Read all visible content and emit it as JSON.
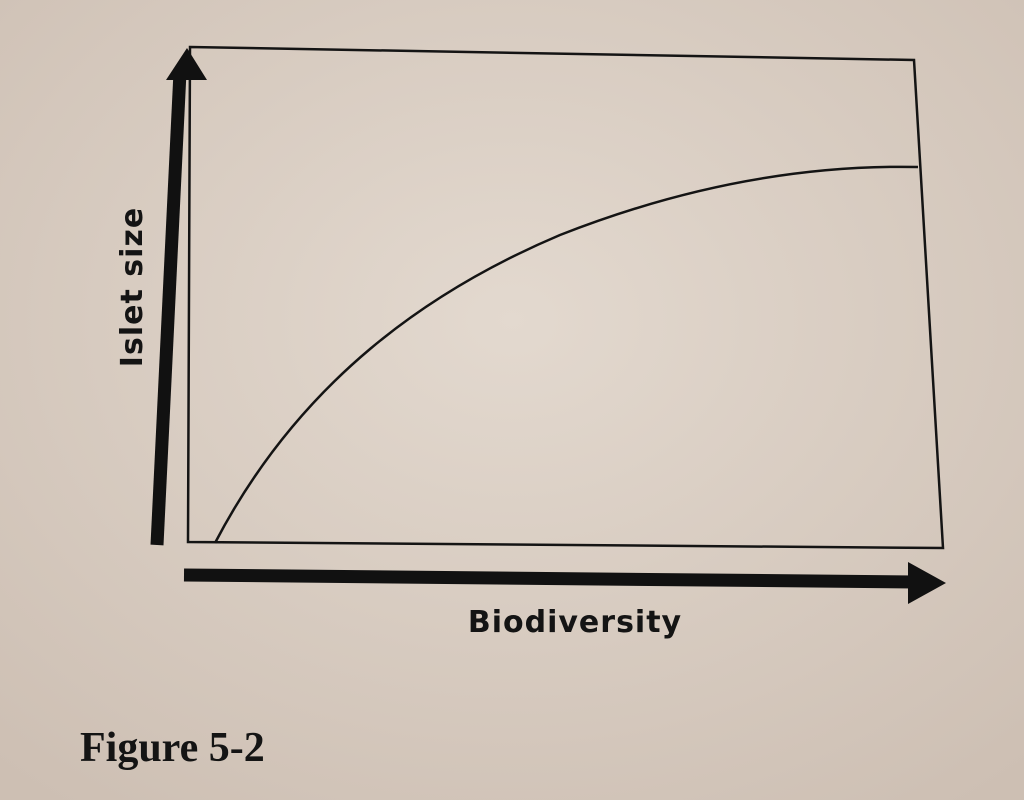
{
  "figure": {
    "y_axis_label": "Islet size",
    "x_axis_label": "Biodiversity",
    "caption": "Figure 5-2"
  }
}
